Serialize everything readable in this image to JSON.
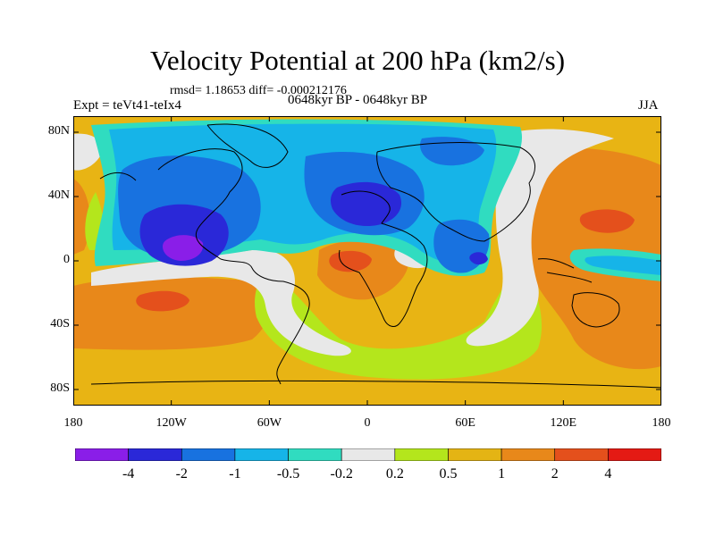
{
  "title": "Velocity Potential at 200 hPa (km2/s)",
  "stats": "rmsd= 1.18653 diff= -0.000212176",
  "left_label": "Expt = teVt41-teIx4",
  "center_label": "0648kyr BP - 0648kyr BP",
  "right_label": "JJA",
  "lat_labels": [
    {
      "text": "80N",
      "lat": 80
    },
    {
      "text": "40N",
      "lat": 40
    },
    {
      "text": "0",
      "lat": 0
    },
    {
      "text": "40S",
      "lat": -40
    },
    {
      "text": "80S",
      "lat": -80
    }
  ],
  "lon_labels": [
    {
      "text": "180",
      "lon": -180
    },
    {
      "text": "120W",
      "lon": -120
    },
    {
      "text": "60W",
      "lon": -60
    },
    {
      "text": "0",
      "lon": 0
    },
    {
      "text": "60E",
      "lon": 60
    },
    {
      "text": "120E",
      "lon": 120
    },
    {
      "text": "180",
      "lon": 180
    }
  ],
  "colorbar": {
    "colors": [
      "#8a1ee8",
      "#2a28d8",
      "#1872e0",
      "#16b4e8",
      "#30dcc0",
      "#e8e8e8",
      "#b4e61c",
      "#e4b414",
      "#e8881a",
      "#e4501c",
      "#e41a14"
    ],
    "labels": [
      "-4",
      "-2",
      "-1",
      "-0.5",
      "-0.2",
      "0.2",
      "0.5",
      "1",
      "2",
      "4"
    ]
  },
  "field_colors": {
    "bg": "#e8b414",
    "orange": "#e8881a",
    "red": "#e4501c",
    "yellow": "#b4e61c",
    "white": "#e8e8e8",
    "teal": "#30dcc0",
    "sky": "#16b4e8",
    "blue": "#1872e0",
    "navy": "#2a28d8",
    "purple": "#8a1ee8"
  }
}
